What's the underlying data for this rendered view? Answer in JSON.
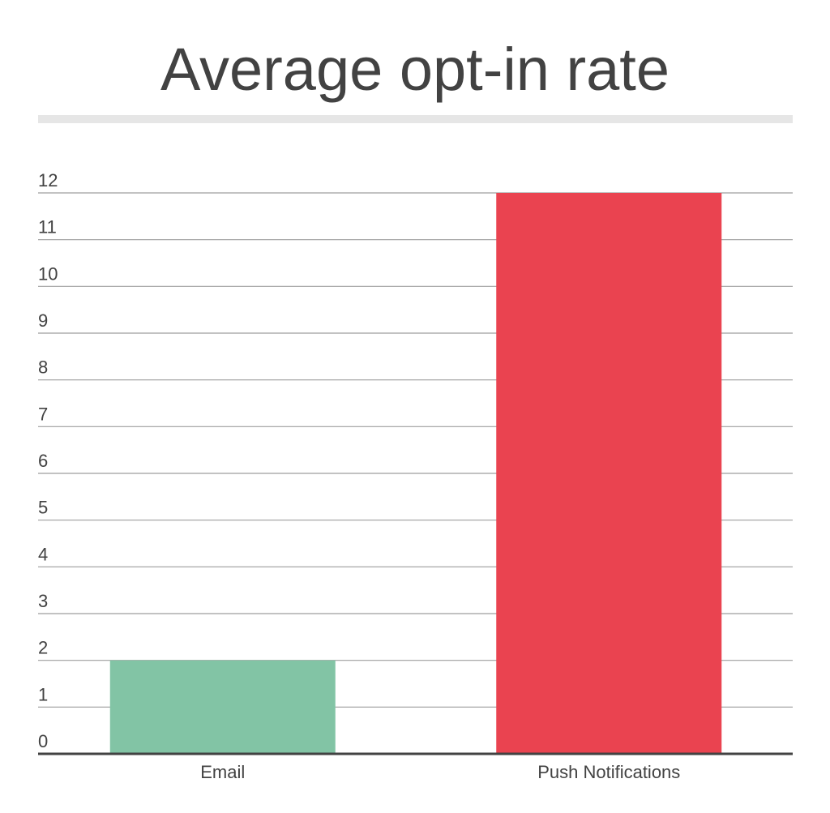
{
  "chart_data": {
    "type": "bar",
    "title": "Average opt-in rate",
    "categories": [
      "Email",
      "Push Notifications"
    ],
    "values": [
      2,
      12
    ],
    "bar_colors": [
      "#82c4a5",
      "#ea4350"
    ],
    "ylim": [
      0,
      12
    ],
    "yticks": [
      "0",
      "1",
      "2",
      "3",
      "4",
      "5",
      "6",
      "7",
      "8",
      "9",
      "10",
      "11",
      "12"
    ],
    "grid": true,
    "xlabel": "",
    "ylabel": ""
  }
}
